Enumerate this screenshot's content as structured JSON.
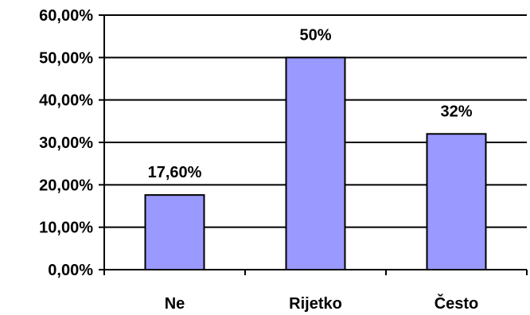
{
  "chart_data": {
    "type": "bar",
    "categories": [
      "Ne",
      "Rijetko",
      "Često"
    ],
    "values": [
      17.6,
      50,
      32
    ],
    "data_labels": [
      "17,60%",
      "50%",
      "32%"
    ],
    "ylim": [
      0,
      60
    ],
    "yticks": [
      0,
      10,
      20,
      30,
      40,
      50,
      60
    ],
    "ytick_labels": [
      "0,00%",
      "10,00%",
      "20,00%",
      "30,00%",
      "40,00%",
      "50,00%",
      "60,00%"
    ],
    "grid": true,
    "legend": "none",
    "colors": {
      "bar": "#9999ff",
      "bar_stroke": "#000000",
      "grid": "#000000"
    }
  }
}
